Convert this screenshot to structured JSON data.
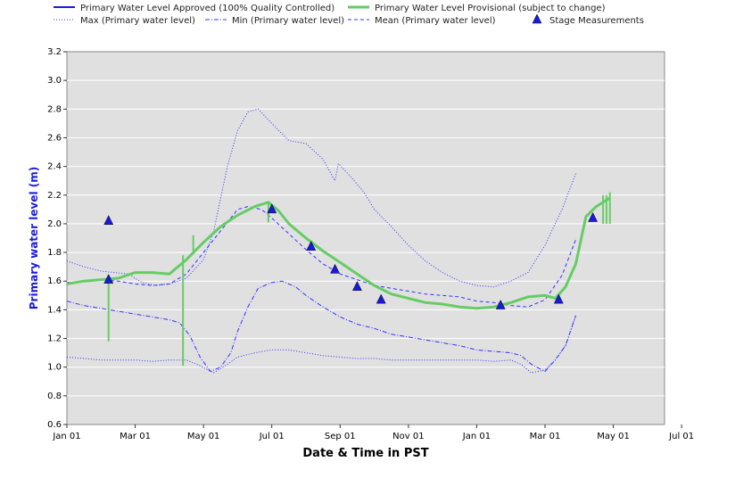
{
  "chart_data": {
    "type": "line",
    "xlabel": "Date & Time in PST",
    "ylabel": "Primary water level (m)",
    "ylim": [
      0.6,
      3.2
    ],
    "yticks": [
      "0.6",
      "0.8",
      "1.0",
      "1.2",
      "1.4",
      "1.6",
      "1.8",
      "2.0",
      "2.2",
      "2.4",
      "2.6",
      "2.8",
      "3.0",
      "3.2"
    ],
    "xticks": [
      "Jan 01",
      "Mar 01",
      "May 01",
      "Jul 01",
      "Sep 01",
      "Nov 01",
      "Jan 01",
      "Mar 01",
      "May 01",
      "Jul 01"
    ],
    "legend_placement": "top",
    "grid": true,
    "legend": [
      {
        "name": "Primary Water Level Approved (100% Quality Controlled)",
        "style": "solid-dark-blue",
        "color": "#1a1adf"
      },
      {
        "name": "Primary Water Level Provisional (subject to change)",
        "style": "solid-green",
        "color": "#66cc66"
      },
      {
        "name": "Stage Measurements",
        "style": "triangle-marker",
        "color": "#1a1adf"
      },
      {
        "name": "Max (Primary water level)",
        "style": "dotted-blue",
        "color": "#3333ff"
      },
      {
        "name": "Min (Primary water level)",
        "style": "dashdot-blue",
        "color": "#3333ff"
      },
      {
        "name": "Mean (Primary water level)",
        "style": "dashed-blue",
        "color": "#3333ff"
      }
    ],
    "series": [
      {
        "name": "Max (Primary water level)",
        "points": [
          [
            0,
            1.74
          ],
          [
            0.5,
            1.7
          ],
          [
            1,
            1.67
          ],
          [
            1.8,
            1.65
          ],
          [
            2.2,
            1.59
          ],
          [
            2.6,
            1.57
          ],
          [
            3.0,
            1.58
          ],
          [
            3.5,
            1.62
          ],
          [
            4.0,
            1.75
          ],
          [
            4.3,
            1.95
          ],
          [
            4.7,
            2.4
          ],
          [
            5.0,
            2.65
          ],
          [
            5.3,
            2.78
          ],
          [
            5.6,
            2.8
          ],
          [
            6.0,
            2.7
          ],
          [
            6.5,
            2.58
          ],
          [
            7.0,
            2.56
          ],
          [
            7.5,
            2.45
          ],
          [
            7.85,
            2.3
          ],
          [
            7.95,
            2.42
          ],
          [
            8.3,
            2.33
          ],
          [
            8.7,
            2.22
          ],
          [
            9.0,
            2.1
          ],
          [
            9.5,
            1.98
          ],
          [
            10.0,
            1.85
          ],
          [
            10.5,
            1.74
          ],
          [
            11.0,
            1.66
          ],
          [
            11.5,
            1.6
          ],
          [
            12.0,
            1.57
          ],
          [
            12.5,
            1.56
          ],
          [
            13.0,
            1.6
          ],
          [
            13.5,
            1.66
          ],
          [
            14.0,
            1.85
          ],
          [
            14.5,
            2.1
          ],
          [
            14.9,
            2.35
          ]
        ]
      },
      {
        "name": "Mean (Primary water level)",
        "points": [
          [
            0,
            1.59
          ],
          [
            0.5,
            1.6
          ],
          [
            1,
            1.61
          ],
          [
            1.5,
            1.6
          ],
          [
            2,
            1.58
          ],
          [
            2.5,
            1.57
          ],
          [
            3,
            1.58
          ],
          [
            3.5,
            1.65
          ],
          [
            4.0,
            1.8
          ],
          [
            4.5,
            1.95
          ],
          [
            5.0,
            2.1
          ],
          [
            5.3,
            2.12
          ],
          [
            5.7,
            2.1
          ],
          [
            6.0,
            2.04
          ],
          [
            6.5,
            1.93
          ],
          [
            7.0,
            1.82
          ],
          [
            7.5,
            1.72
          ],
          [
            8.0,
            1.65
          ],
          [
            8.5,
            1.61
          ],
          [
            9.0,
            1.57
          ],
          [
            9.5,
            1.55
          ],
          [
            10.0,
            1.53
          ],
          [
            10.5,
            1.51
          ],
          [
            11.0,
            1.5
          ],
          [
            11.5,
            1.49
          ],
          [
            12.0,
            1.46
          ],
          [
            12.5,
            1.45
          ],
          [
            13.0,
            1.43
          ],
          [
            13.5,
            1.42
          ],
          [
            14.0,
            1.47
          ],
          [
            14.5,
            1.64
          ],
          [
            14.9,
            1.89
          ]
        ]
      },
      {
        "name": "Min (Primary water level)",
        "points": [
          [
            0,
            1.46
          ],
          [
            0.5,
            1.43
          ],
          [
            1,
            1.41
          ],
          [
            1.5,
            1.39
          ],
          [
            2,
            1.37
          ],
          [
            2.5,
            1.35
          ],
          [
            3,
            1.33
          ],
          [
            3.3,
            1.31
          ],
          [
            3.6,
            1.22
          ],
          [
            3.9,
            1.07
          ],
          [
            4.2,
            0.97
          ],
          [
            4.5,
            1.0
          ],
          [
            4.8,
            1.1
          ],
          [
            5.0,
            1.25
          ],
          [
            5.3,
            1.42
          ],
          [
            5.6,
            1.55
          ],
          [
            6.0,
            1.59
          ],
          [
            6.3,
            1.6
          ],
          [
            6.7,
            1.56
          ],
          [
            7.0,
            1.5
          ],
          [
            7.5,
            1.42
          ],
          [
            8.0,
            1.35
          ],
          [
            8.5,
            1.3
          ],
          [
            9.0,
            1.27
          ],
          [
            9.5,
            1.23
          ],
          [
            10.0,
            1.21
          ],
          [
            10.5,
            1.19
          ],
          [
            11.0,
            1.17
          ],
          [
            11.5,
            1.15
          ],
          [
            12.0,
            1.12
          ],
          [
            12.5,
            1.11
          ],
          [
            13.0,
            1.1
          ],
          [
            13.3,
            1.08
          ],
          [
            13.6,
            1.02
          ],
          [
            14.0,
            0.97
          ],
          [
            14.3,
            1.05
          ],
          [
            14.6,
            1.15
          ],
          [
            14.9,
            1.36
          ]
        ]
      },
      {
        "name": "Min (Primary water level) lower",
        "points": [
          [
            0,
            1.07
          ],
          [
            0.5,
            1.06
          ],
          [
            1,
            1.05
          ],
          [
            1.5,
            1.05
          ],
          [
            2,
            1.05
          ],
          [
            2.5,
            1.04
          ],
          [
            3,
            1.05
          ],
          [
            3.5,
            1.05
          ],
          [
            3.9,
            1.01
          ],
          [
            4.3,
            0.96
          ],
          [
            4.7,
            1.02
          ],
          [
            5.0,
            1.07
          ],
          [
            5.5,
            1.1
          ],
          [
            6.0,
            1.12
          ],
          [
            6.5,
            1.12
          ],
          [
            7.0,
            1.1
          ],
          [
            7.5,
            1.08
          ],
          [
            8.0,
            1.07
          ],
          [
            8.5,
            1.06
          ],
          [
            9.0,
            1.06
          ],
          [
            9.5,
            1.05
          ],
          [
            10.0,
            1.05
          ],
          [
            10.5,
            1.05
          ],
          [
            11.0,
            1.05
          ],
          [
            11.5,
            1.05
          ],
          [
            12.0,
            1.05
          ],
          [
            12.5,
            1.04
          ],
          [
            13.0,
            1.05
          ],
          [
            13.3,
            1.02
          ],
          [
            13.6,
            0.96
          ],
          [
            14.0,
            0.98
          ],
          [
            14.3,
            1.05
          ],
          [
            14.6,
            1.15
          ],
          [
            14.9,
            1.36
          ]
        ]
      },
      {
        "name": "Primary Water Level Provisional (subject to change)",
        "points": [
          [
            0,
            1.58
          ],
          [
            0.5,
            1.6
          ],
          [
            1,
            1.61
          ],
          [
            1.5,
            1.62
          ],
          [
            2,
            1.66
          ],
          [
            2.5,
            1.66
          ],
          [
            3.0,
            1.65
          ],
          [
            3.5,
            1.75
          ],
          [
            4.0,
            1.87
          ],
          [
            4.5,
            1.98
          ],
          [
            5.0,
            2.06
          ],
          [
            5.5,
            2.12
          ],
          [
            5.9,
            2.15
          ],
          [
            6.2,
            2.09
          ],
          [
            6.5,
            2.0
          ],
          [
            7.0,
            1.9
          ],
          [
            7.5,
            1.81
          ],
          [
            8.0,
            1.73
          ],
          [
            8.5,
            1.65
          ],
          [
            9.0,
            1.57
          ],
          [
            9.5,
            1.51
          ],
          [
            10.0,
            1.48
          ],
          [
            10.5,
            1.45
          ],
          [
            11.0,
            1.44
          ],
          [
            11.5,
            1.42
          ],
          [
            12.0,
            1.41
          ],
          [
            12.5,
            1.42
          ],
          [
            13.0,
            1.45
          ],
          [
            13.5,
            1.49
          ],
          [
            14.0,
            1.5
          ],
          [
            14.3,
            1.48
          ],
          [
            14.6,
            1.56
          ],
          [
            14.9,
            1.72
          ],
          [
            15.2,
            2.05
          ],
          [
            15.5,
            2.12
          ],
          [
            15.9,
            2.18
          ]
        ]
      },
      {
        "name": "Stage Measurements",
        "points": [
          [
            1.22,
            2.02
          ],
          [
            1.22,
            1.61
          ],
          [
            6.0,
            2.1
          ],
          [
            7.15,
            1.84
          ],
          [
            7.85,
            1.68
          ],
          [
            8.5,
            1.56
          ],
          [
            9.2,
            1.47
          ],
          [
            12.7,
            1.43
          ],
          [
            14.4,
            1.47
          ],
          [
            15.4,
            2.04
          ]
        ]
      }
    ]
  }
}
